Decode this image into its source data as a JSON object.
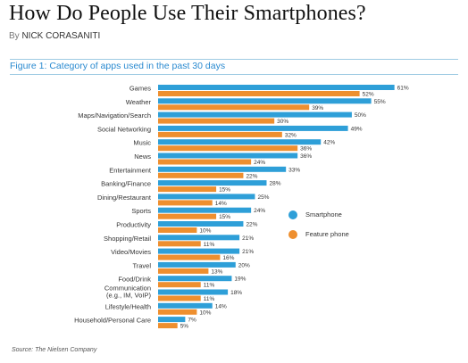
{
  "article": {
    "headline": "How Do People Use Their Smartphones?",
    "byline_prefix": "By",
    "author": "NICK CORASANITI"
  },
  "figure": {
    "title": "Figure 1: Category of apps used in the past 30 days",
    "source": "Source: The Nielsen Company"
  },
  "colors": {
    "smartphone": "#2e9fd8",
    "feature_phone": "#ee8f2f",
    "title_blue": "#2a8ad0"
  },
  "chart_data": {
    "type": "bar",
    "orientation": "horizontal",
    "title": "Figure 1: Category of apps used in the past 30 days",
    "categories": [
      "Games",
      "Weather",
      "Maps/Navigation/Search",
      "Social Networking",
      "Music",
      "News",
      "Entertainment",
      "Banking/Finance",
      "Dining/Restaurant",
      "Sports",
      "Productivity",
      "Shopping/Retail",
      "Video/Movies",
      "Travel",
      "Food/Drink",
      "Communication (e.g., IM, VoIP)",
      "Lifestyle/Health",
      "Household/Personal Care"
    ],
    "series": [
      {
        "name": "Smartphone",
        "values": [
          61,
          55,
          50,
          49,
          42,
          36,
          33,
          28,
          25,
          24,
          22,
          21,
          21,
          20,
          19,
          18,
          14,
          7
        ]
      },
      {
        "name": "Feature phone",
        "values": [
          52,
          39,
          30,
          32,
          36,
          24,
          22,
          15,
          14,
          15,
          10,
          11,
          16,
          13,
          11,
          11,
          10,
          5
        ]
      }
    ],
    "value_suffix": "%",
    "xlim": [
      0,
      65
    ],
    "grid": false,
    "legend_position": "right"
  }
}
